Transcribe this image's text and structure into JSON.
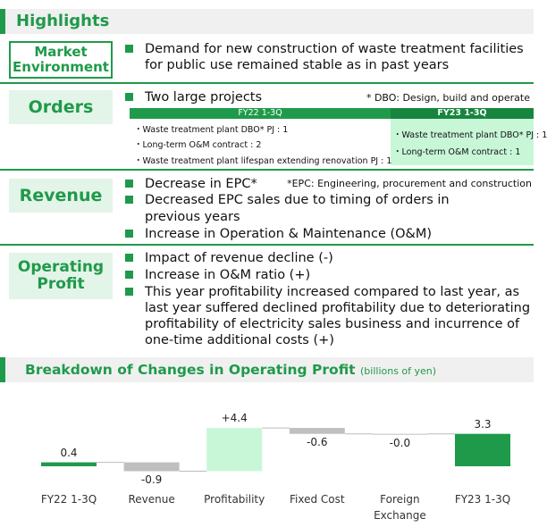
{
  "header": {
    "title": "Highlights"
  },
  "market": {
    "label": "Market Environment",
    "bullets": [
      "Demand for new construction of waste treatment facilities for public use remained stable as in past years"
    ]
  },
  "orders": {
    "label": "Orders",
    "bullets": [
      "Two large projects"
    ],
    "note": "* DBO: Design, build and operate",
    "table": {
      "headers": [
        "FY22 1-3Q",
        "FY23 1-3Q"
      ],
      "fy22": [
        "Waste treatment plant DBO* PJ : 1",
        "Long-term O&M contract : 2",
        "Waste treatment plant lifespan extending renovation PJ : 1"
      ],
      "fy23": [
        "Waste treatment plant DBO* PJ : 1",
        "Long-term O&M contract : 1"
      ]
    }
  },
  "revenue": {
    "label": "Revenue",
    "note": "*EPC: Engineering, procurement and construction",
    "bullets": [
      "Decrease in EPC*",
      "Increase in Operation & Maintenance (O&M)"
    ],
    "continuation": "Decreased EPC sales due to timing of orders in previous years"
  },
  "profit": {
    "label": "Operating Profit",
    "bullets": [
      "Impact of revenue decline (-)",
      "Increase in O&M ratio (+)",
      "This year profitability increased compared to last year, as last year suffered declined profitability due to deteriorating profitability of electricity sales business and incurrence of one-time additional costs (+)"
    ]
  },
  "chart_data": {
    "type": "waterfall",
    "title": "Breakdown of Changes in Operating Profit",
    "subtitle": "(billions of yen)",
    "categories": [
      "FY22 1-3Q",
      "Revenue",
      "Profitability",
      "Fixed Cost",
      "Foreign Exchange",
      "FY23 1-3Q"
    ],
    "values": [
      0.4,
      -0.9,
      4.4,
      -0.6,
      -0.0,
      3.3
    ],
    "value_labels": [
      "0.4",
      "-0.9",
      "+4.4",
      "-0.6",
      "-0.0",
      "3.3"
    ],
    "colors": [
      "#1f9a4a",
      "#bfbfbf",
      "#c8f7d8",
      "#bfbfbf",
      "#bfbfbf",
      "#1f9a4a"
    ]
  }
}
